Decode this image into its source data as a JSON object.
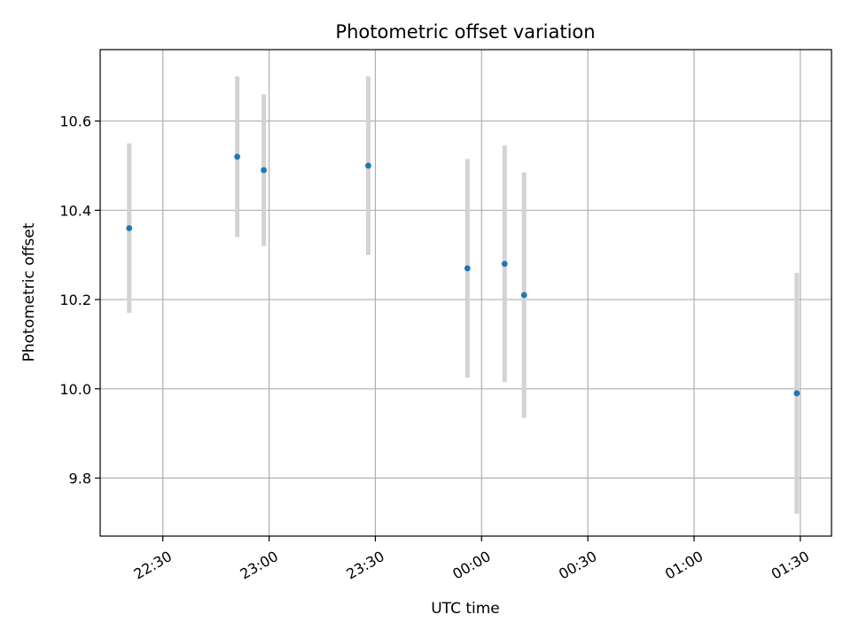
{
  "chart_data": {
    "type": "scatter",
    "title": "Photometric offset variation",
    "xlabel": "UTC time",
    "ylabel": "Photometric offset",
    "grid": true,
    "x_ticks": [
      "22:30",
      "23:00",
      "23:30",
      "00:00",
      "00:30",
      "01:00",
      "01:30"
    ],
    "x_tick_minutes": [
      0,
      30,
      60,
      90,
      120,
      150,
      180
    ],
    "xlim_minutes": [
      -17.7,
      188.8
    ],
    "y_ticks": [
      9.8,
      10.0,
      10.2,
      10.4,
      10.6
    ],
    "y_tick_labels": [
      "9.8",
      "10.0",
      "10.2",
      "10.4",
      "10.6"
    ],
    "ylim": [
      9.67,
      10.76
    ],
    "colors": {
      "point": "#1f77b4",
      "errorbar": "#d3d3d3",
      "grid": "#b0b0b0"
    },
    "points": [
      {
        "time": "22:20:30",
        "t": -9.5,
        "y": 10.36,
        "err": 0.19
      },
      {
        "time": "22:51:00",
        "t": 21.0,
        "y": 10.52,
        "err": 0.18
      },
      {
        "time": "22:58:30",
        "t": 28.5,
        "y": 10.49,
        "err": 0.17
      },
      {
        "time": "23:28:00",
        "t": 58.0,
        "y": 10.5,
        "err": 0.2
      },
      {
        "time": "23:56:00",
        "t": 86.0,
        "y": 10.27,
        "err": 0.245
      },
      {
        "time": "00:06:30",
        "t": 96.5,
        "y": 10.28,
        "err": 0.265
      },
      {
        "time": "00:12:00",
        "t": 102.0,
        "y": 10.21,
        "err": 0.275
      },
      {
        "time": "01:29:00",
        "t": 179.0,
        "y": 9.99,
        "err": 0.27
      }
    ]
  }
}
